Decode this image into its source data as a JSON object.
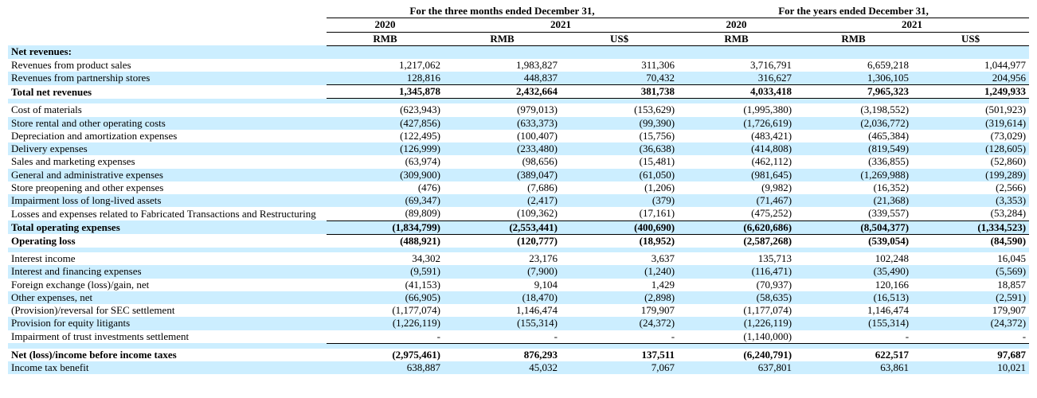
{
  "header": {
    "group1": "For the three months ended December 31,",
    "group2": "For the years ended December 31,",
    "years": [
      "2020",
      "2021",
      "2020",
      "2021"
    ],
    "curr": [
      "RMB",
      "RMB",
      "US$",
      "RMB",
      "RMB",
      "US$"
    ]
  },
  "rows": [
    {
      "label": "Net revenues:",
      "cells": [
        "",
        "",
        "",
        "",
        "",
        ""
      ],
      "bold": true,
      "shade": true
    },
    {
      "label": "Revenues from product sales",
      "cells": [
        "1,217,062",
        "1,983,827",
        "311,306",
        "3,716,791",
        "6,659,218",
        "1,044,977"
      ]
    },
    {
      "label": "Revenues from partnership stores",
      "cells": [
        "128,816",
        "448,837",
        "70,432",
        "316,627",
        "1,306,105",
        "204,956"
      ],
      "shade": true,
      "ul": true
    },
    {
      "label": "Total net revenues",
      "cells": [
        "1,345,878",
        "2,432,664",
        "381,738",
        "4,033,418",
        "7,965,323",
        "1,249,933"
      ],
      "bold": true,
      "ul": true
    },
    {
      "spacer": true,
      "shade": true
    },
    {
      "label": "Cost of materials",
      "cells": [
        "(623,943)",
        "(979,013)",
        "(153,629)",
        "(1,995,380)",
        "(3,198,552)",
        "(501,923)"
      ]
    },
    {
      "label": "Store rental and other operating costs",
      "cells": [
        "(427,856)",
        "(633,373)",
        "(99,390)",
        "(1,726,619)",
        "(2,036,772)",
        "(319,614)"
      ],
      "shade": true
    },
    {
      "label": "Depreciation and amortization expenses",
      "cells": [
        "(122,495)",
        "(100,407)",
        "(15,756)",
        "(483,421)",
        "(465,384)",
        "(73,029)"
      ]
    },
    {
      "label": "Delivery expenses",
      "cells": [
        "(126,999)",
        "(233,480)",
        "(36,638)",
        "(414,808)",
        "(819,549)",
        "(128,605)"
      ],
      "shade": true
    },
    {
      "label": "Sales and marketing expenses",
      "cells": [
        "(63,974)",
        "(98,656)",
        "(15,481)",
        "(462,112)",
        "(336,855)",
        "(52,860)"
      ]
    },
    {
      "label": "General and administrative expenses",
      "cells": [
        "(309,900)",
        "(389,047)",
        "(61,050)",
        "(981,645)",
        "(1,269,988)",
        "(199,289)"
      ],
      "shade": true
    },
    {
      "label": "Store preopening and other expenses",
      "cells": [
        "(476)",
        "(7,686)",
        "(1,206)",
        "(9,982)",
        "(16,352)",
        "(2,566)"
      ]
    },
    {
      "label": "Impairment loss of long-lived assets",
      "cells": [
        "(69,347)",
        "(2,417)",
        "(379)",
        "(71,467)",
        "(21,368)",
        "(3,353)"
      ],
      "shade": true
    },
    {
      "label": "Losses and expenses related to Fabricated Transactions and Restructuring",
      "wrap": true,
      "cells": [
        "(89,809)",
        "(109,362)",
        "(17,161)",
        "(475,252)",
        "(339,557)",
        "(53,284)"
      ],
      "ul": true
    },
    {
      "label": "Total operating expenses",
      "bold": true,
      "shade": true,
      "cells": [
        "(1,834,799)",
        "(2,553,441)",
        "(400,690)",
        "(6,620,686)",
        "(8,504,377)",
        "(1,334,523)"
      ],
      "ul": true
    },
    {
      "label": "Operating loss",
      "bold": true,
      "cells": [
        "(488,921)",
        "(120,777)",
        "(18,952)",
        "(2,587,268)",
        "(539,054)",
        "(84,590)"
      ]
    },
    {
      "spacer": true,
      "shade": true
    },
    {
      "label": "Interest income",
      "cells": [
        "34,302",
        "23,176",
        "3,637",
        "135,713",
        "102,248",
        "16,045"
      ]
    },
    {
      "label": "Interest and financing expenses",
      "cells": [
        "(9,591)",
        "(7,900)",
        "(1,240)",
        "(116,471)",
        "(35,490)",
        "(5,569)"
      ],
      "shade": true
    },
    {
      "label": "Foreign exchange (loss)/gain, net",
      "cells": [
        "(41,153)",
        "9,104",
        "1,429",
        "(70,937)",
        "120,166",
        "18,857"
      ]
    },
    {
      "label": "Other expenses, net",
      "cells": [
        "(66,905)",
        "(18,470)",
        "(2,898)",
        "(58,635)",
        "(16,513)",
        "(2,591)"
      ],
      "shade": true
    },
    {
      "label": "(Provision)/reversal for SEC settlement",
      "cells": [
        "(1,177,074)",
        "1,146,474",
        "179,907",
        "(1,177,074)",
        "1,146,474",
        "179,907"
      ]
    },
    {
      "label": "Provision for equity litigants",
      "cells": [
        "(1,226,119)",
        "(155,314)",
        "(24,372)",
        "(1,226,119)",
        "(155,314)",
        "(24,372)"
      ],
      "shade": true
    },
    {
      "label": "Impairment of trust investments settlement",
      "cells": [
        "-",
        "-",
        "-",
        "(1,140,000)",
        "-",
        "-"
      ],
      "ul": true
    },
    {
      "spacer": true,
      "shade": true
    },
    {
      "label": "Net (loss)/income before income taxes",
      "bold": true,
      "cells": [
        "(2,975,461)",
        "876,293",
        "137,511",
        "(6,240,791)",
        "622,517",
        "97,687"
      ]
    },
    {
      "label": "Income tax benefit",
      "shade": true,
      "cells": [
        "638,887",
        "45,032",
        "7,067",
        "637,801",
        "63,861",
        "10,021"
      ]
    }
  ],
  "style": {
    "shade_color": "#cceeff",
    "text_color": "#000000",
    "font_family": "Times New Roman"
  }
}
